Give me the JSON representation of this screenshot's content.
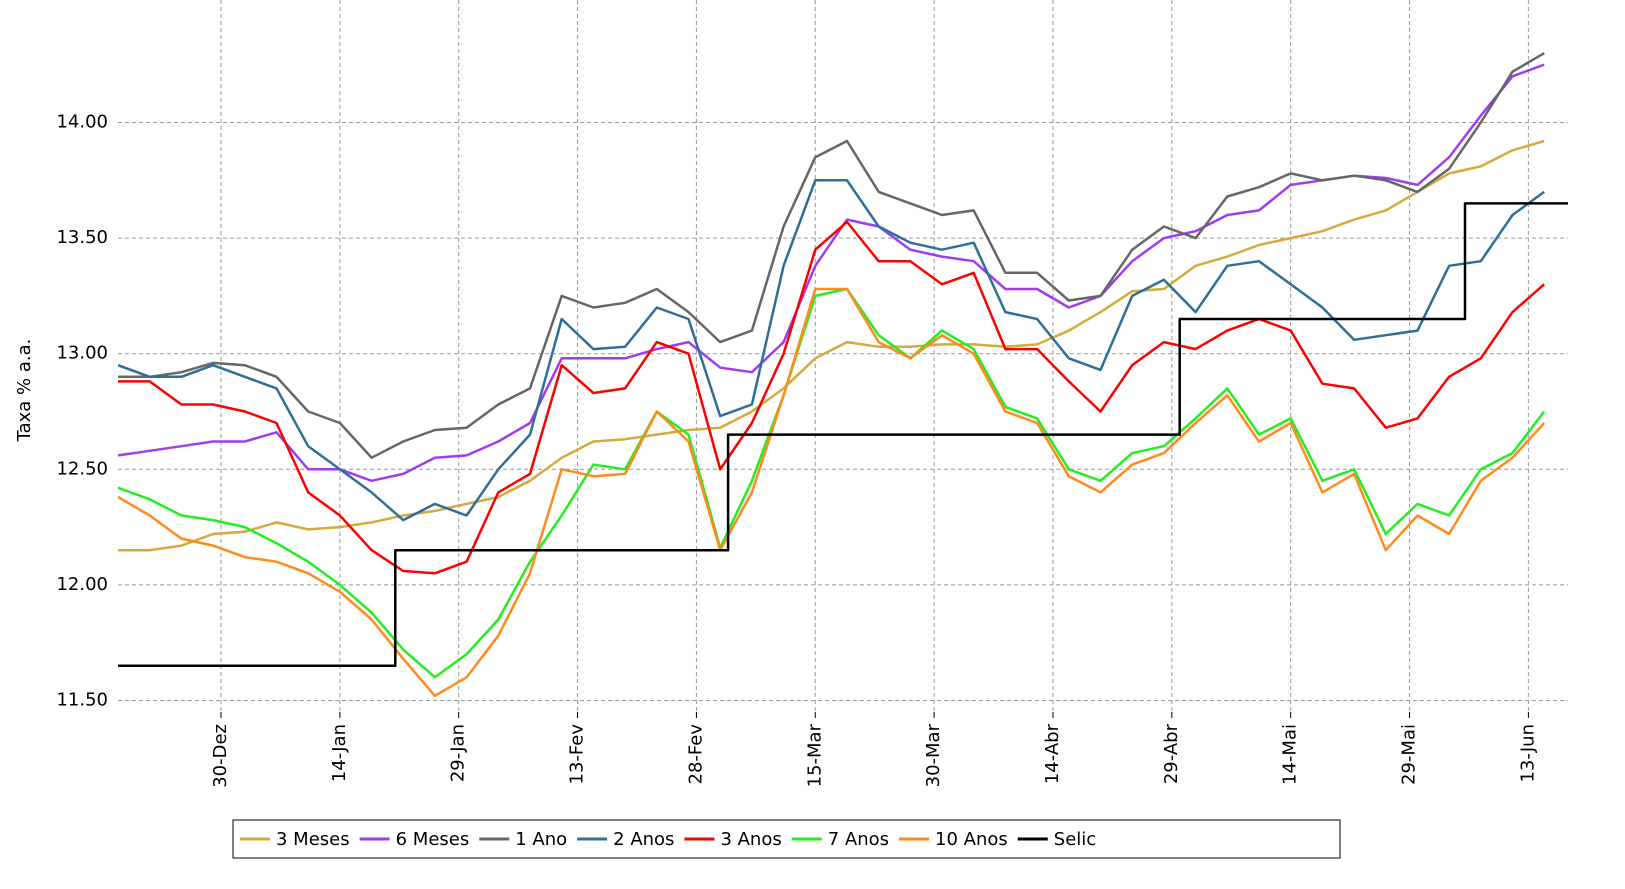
{
  "chart_data": {
    "type": "line",
    "y_label": "Taxa % a.a.",
    "xlim": [
      -13,
      170
    ],
    "ylim": [
      11.45,
      14.53
    ],
    "grid": true,
    "legend": "bottom",
    "xticks": [
      {
        "value": 0,
        "label": "30-Dez"
      },
      {
        "value": 15,
        "label": "14-Jan"
      },
      {
        "value": 30,
        "label": "29-Jan"
      },
      {
        "value": 45,
        "label": "13-Fev"
      },
      {
        "value": 60,
        "label": "28-Fev"
      },
      {
        "value": 75,
        "label": "15-Mar"
      },
      {
        "value": 90,
        "label": "30-Mar"
      },
      {
        "value": 105,
        "label": "14-Abr"
      },
      {
        "value": 120,
        "label": "29-Abr"
      },
      {
        "value": 135,
        "label": "14-Mai"
      },
      {
        "value": 150,
        "label": "29-Mai"
      },
      {
        "value": 165,
        "label": "13-Jun"
      }
    ],
    "yticks": [
      {
        "value": 11.5,
        "label": "11.50"
      },
      {
        "value": 12,
        "label": "12.00"
      },
      {
        "value": 12.5,
        "label": "12.50"
      },
      {
        "value": 13,
        "label": "13.00"
      },
      {
        "value": 13.5,
        "label": "13.50"
      },
      {
        "value": 14,
        "label": "14.00"
      }
    ],
    "x": [
      -13,
      -9,
      -5,
      -1,
      3,
      7,
      11,
      15,
      19,
      23,
      27,
      31,
      35,
      39,
      43,
      47,
      51,
      55,
      59,
      63,
      67,
      71,
      75,
      79,
      83,
      87,
      91,
      95,
      99,
      103,
      107,
      111,
      115,
      119,
      123,
      127,
      131,
      135,
      139,
      143,
      147,
      151,
      155,
      159,
      163,
      167
    ],
    "series": [
      {
        "name": "3 Meses",
        "color": "#d4aa3c",
        "values": [
          12.15,
          12.15,
          12.17,
          12.22,
          12.23,
          12.27,
          12.24,
          12.25,
          12.27,
          12.3,
          12.32,
          12.35,
          12.38,
          12.45,
          12.55,
          12.62,
          12.63,
          12.65,
          12.67,
          12.68,
          12.75,
          12.85,
          12.98,
          13.05,
          13.03,
          13.03,
          13.04,
          13.04,
          13.03,
          13.04,
          13.1,
          13.18,
          13.27,
          13.28,
          13.38,
          13.42,
          13.47,
          13.5,
          13.53,
          13.58,
          13.62,
          13.7,
          13.78,
          13.81,
          13.88,
          13.92
        ]
      },
      {
        "name": "6 Meses",
        "color": "#a03cf0",
        "values": [
          12.56,
          12.58,
          12.6,
          12.62,
          12.62,
          12.66,
          12.5,
          12.5,
          12.45,
          12.48,
          12.55,
          12.56,
          12.62,
          12.7,
          12.98,
          12.98,
          12.98,
          13.02,
          13.05,
          12.94,
          12.92,
          13.05,
          13.38,
          13.58,
          13.55,
          13.45,
          13.42,
          13.4,
          13.28,
          13.28,
          13.2,
          13.25,
          13.4,
          13.5,
          13.53,
          13.6,
          13.62,
          13.73,
          13.75,
          13.77,
          13.76,
          13.73,
          13.85,
          14.03,
          14.2,
          14.25
        ]
      },
      {
        "name": "1 Ano",
        "color": "#666666",
        "values": [
          12.9,
          12.9,
          12.92,
          12.96,
          12.95,
          12.9,
          12.75,
          12.7,
          12.55,
          12.62,
          12.67,
          12.68,
          12.78,
          12.85,
          13.25,
          13.2,
          13.22,
          13.28,
          13.18,
          13.05,
          13.1,
          13.55,
          13.85,
          13.92,
          13.7,
          13.65,
          13.6,
          13.62,
          13.35,
          13.35,
          13.23,
          13.25,
          13.45,
          13.55,
          13.5,
          13.68,
          13.72,
          13.78,
          13.75,
          13.77,
          13.75,
          13.7,
          13.8,
          14.0,
          14.22,
          14.3
        ]
      },
      {
        "name": "2 Anos",
        "color": "#2f6f96",
        "values": [
          12.95,
          12.9,
          12.9,
          12.95,
          12.9,
          12.85,
          12.6,
          12.5,
          12.4,
          12.28,
          12.35,
          12.3,
          12.5,
          12.65,
          13.15,
          13.02,
          13.03,
          13.2,
          13.15,
          12.73,
          12.78,
          13.38,
          13.75,
          13.75,
          13.55,
          13.48,
          13.45,
          13.48,
          13.18,
          13.15,
          12.98,
          12.93,
          13.25,
          13.32,
          13.18,
          13.38,
          13.4,
          13.3,
          13.2,
          13.06,
          13.08,
          13.1,
          13.38,
          13.4,
          13.6,
          13.7
        ]
      },
      {
        "name": "3 Anos",
        "color": "#ff0000",
        "values": [
          12.88,
          12.88,
          12.78,
          12.78,
          12.75,
          12.7,
          12.4,
          12.3,
          12.15,
          12.06,
          12.05,
          12.1,
          12.4,
          12.48,
          12.95,
          12.83,
          12.85,
          13.05,
          13.0,
          12.5,
          12.7,
          13.0,
          13.45,
          13.57,
          13.4,
          13.4,
          13.3,
          13.35,
          13.02,
          13.02,
          12.88,
          12.75,
          12.95,
          13.05,
          13.02,
          13.1,
          13.15,
          13.1,
          12.87,
          12.85,
          12.68,
          12.72,
          12.9,
          12.98,
          13.18,
          13.3
        ]
      },
      {
        "name": "7 Anos",
        "color": "#22ee22",
        "values": [
          12.42,
          12.37,
          12.3,
          12.28,
          12.25,
          12.18,
          12.1,
          12.0,
          11.88,
          11.72,
          11.6,
          11.7,
          11.85,
          12.1,
          12.3,
          12.52,
          12.5,
          12.75,
          12.65,
          12.16,
          12.45,
          12.82,
          13.25,
          13.28,
          13.08,
          12.98,
          13.1,
          13.02,
          12.77,
          12.72,
          12.5,
          12.45,
          12.57,
          12.6,
          12.72,
          12.85,
          12.65,
          12.72,
          12.45,
          12.5,
          12.22,
          12.35,
          12.3,
          12.5,
          12.57,
          12.75
        ]
      },
      {
        "name": "10 Anos",
        "color": "#ff8a1e",
        "values": [
          12.38,
          12.3,
          12.2,
          12.17,
          12.12,
          12.1,
          12.05,
          11.97,
          11.85,
          11.68,
          11.52,
          11.6,
          11.78,
          12.05,
          12.5,
          12.47,
          12.48,
          12.75,
          12.62,
          12.15,
          12.4,
          12.82,
          13.28,
          13.28,
          13.05,
          12.98,
          13.08,
          13.0,
          12.75,
          12.7,
          12.47,
          12.4,
          12.52,
          12.57,
          12.7,
          12.82,
          12.62,
          12.7,
          12.4,
          12.48,
          12.15,
          12.3,
          12.22,
          12.45,
          12.55,
          12.7
        ]
      },
      {
        "name": "Selic",
        "color": "#000000",
        "x": [
          -13,
          22,
          22,
          64,
          64,
          121,
          121,
          157,
          157,
          170
        ],
        "values": [
          11.65,
          11.65,
          12.15,
          12.15,
          12.65,
          12.65,
          13.15,
          13.15,
          13.65,
          13.65
        ]
      }
    ]
  }
}
